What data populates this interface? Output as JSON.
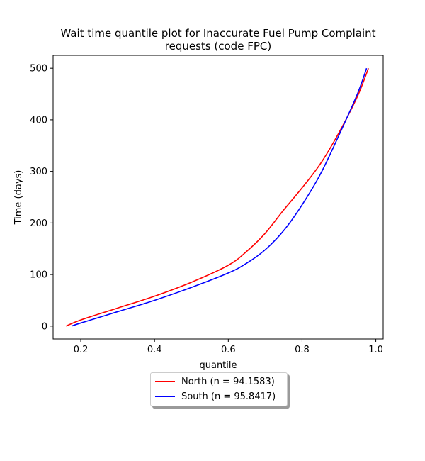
{
  "chart_data": {
    "type": "line",
    "title": "Wait time quantile plot for Inaccurate Fuel Pump Complaint\nrequests (code FPC)",
    "xlabel": "quantile",
    "ylabel": "Time (days)",
    "xlim": [
      0.125,
      1.02
    ],
    "ylim": [
      -25,
      525
    ],
    "xticks": [
      0.2,
      0.4,
      0.6,
      0.8,
      1.0
    ],
    "xtick_labels": [
      "0.2",
      "0.4",
      "0.6",
      "0.8",
      "1.0"
    ],
    "yticks": [
      0,
      100,
      200,
      300,
      400,
      500
    ],
    "ytick_labels": [
      "0",
      "100",
      "200",
      "300",
      "400",
      "500"
    ],
    "grid": false,
    "legend_position": "below",
    "series": [
      {
        "name": "North (n = 94.1583)",
        "color": "#ff0000",
        "x": [
          0.16,
          0.2,
          0.3,
          0.4,
          0.5,
          0.6,
          0.65,
          0.7,
          0.75,
          0.8,
          0.85,
          0.9,
          0.95,
          0.98
        ],
        "y": [
          0,
          12,
          35,
          58,
          85,
          118,
          145,
          180,
          225,
          268,
          315,
          375,
          445,
          500
        ]
      },
      {
        "name": "South (n = 95.8417)",
        "color": "#0000ff",
        "x": [
          0.175,
          0.2,
          0.3,
          0.4,
          0.5,
          0.6,
          0.65,
          0.7,
          0.75,
          0.8,
          0.85,
          0.9,
          0.95,
          0.975
        ],
        "y": [
          0,
          6,
          28,
          50,
          75,
          103,
          122,
          148,
          185,
          235,
          295,
          370,
          450,
          500
        ]
      }
    ]
  }
}
